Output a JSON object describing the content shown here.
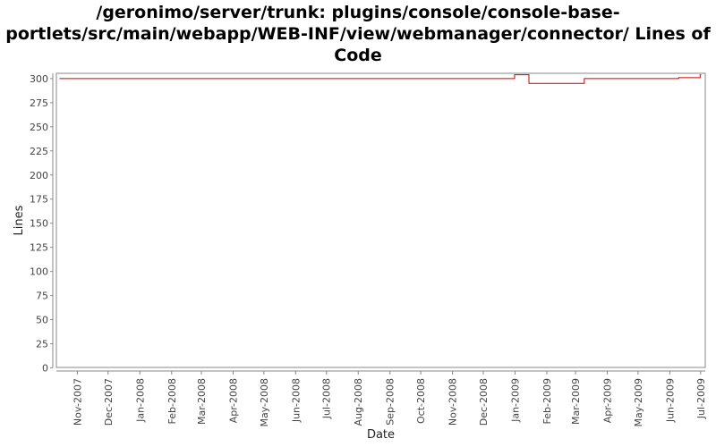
{
  "chart_data": {
    "type": "line",
    "title": "/geronimo/server/trunk: plugins/console/console-base-portlets/src/main/webapp/WEB-INF/view/webmanager/connector/ Lines of Code",
    "xlabel": "Date",
    "ylabel": "Lines",
    "ylim": [
      0,
      305
    ],
    "yticks": [
      0,
      25,
      50,
      75,
      100,
      125,
      150,
      175,
      200,
      225,
      250,
      275,
      300
    ],
    "xlim": [
      "2007-10-12",
      "2009-07-06"
    ],
    "xticks": [
      {
        "date": "2007-11-01",
        "label": "Nov-2007"
      },
      {
        "date": "2007-12-01",
        "label": "Dec-2007"
      },
      {
        "date": "2008-01-01",
        "label": "Jan-2008"
      },
      {
        "date": "2008-02-01",
        "label": "Feb-2008"
      },
      {
        "date": "2008-03-01",
        "label": "Mar-2008"
      },
      {
        "date": "2008-04-01",
        "label": "Apr-2008"
      },
      {
        "date": "2008-05-01",
        "label": "May-2008"
      },
      {
        "date": "2008-06-01",
        "label": "Jun-2008"
      },
      {
        "date": "2008-07-01",
        "label": "Jul-2008"
      },
      {
        "date": "2008-08-01",
        "label": "Aug-2008"
      },
      {
        "date": "2008-09-01",
        "label": "Sep-2008"
      },
      {
        "date": "2008-10-01",
        "label": "Oct-2008"
      },
      {
        "date": "2008-11-01",
        "label": "Nov-2008"
      },
      {
        "date": "2008-12-01",
        "label": "Dec-2008"
      },
      {
        "date": "2009-01-01",
        "label": "Jan-2009"
      },
      {
        "date": "2009-02-01",
        "label": "Feb-2009"
      },
      {
        "date": "2009-03-01",
        "label": "Mar-2009"
      },
      {
        "date": "2009-04-01",
        "label": "Apr-2009"
      },
      {
        "date": "2009-05-01",
        "label": "May-2009"
      },
      {
        "date": "2009-06-01",
        "label": "Jun-2009"
      },
      {
        "date": "2009-07-01",
        "label": "Jul-2009"
      }
    ],
    "series": [
      {
        "color": "#cc0000",
        "step": true,
        "points": [
          {
            "x": "2007-10-15",
            "y": 300
          },
          {
            "x": "2009-01-01",
            "y": 304
          },
          {
            "x": "2009-01-15",
            "y": 295
          },
          {
            "x": "2009-03-10",
            "y": 300
          },
          {
            "x": "2009-06-10",
            "y": 301
          },
          {
            "x": "2009-07-01",
            "y": 304
          },
          {
            "x": "2009-07-02",
            "y": 304
          }
        ]
      }
    ],
    "grid": false,
    "legend": "none"
  }
}
